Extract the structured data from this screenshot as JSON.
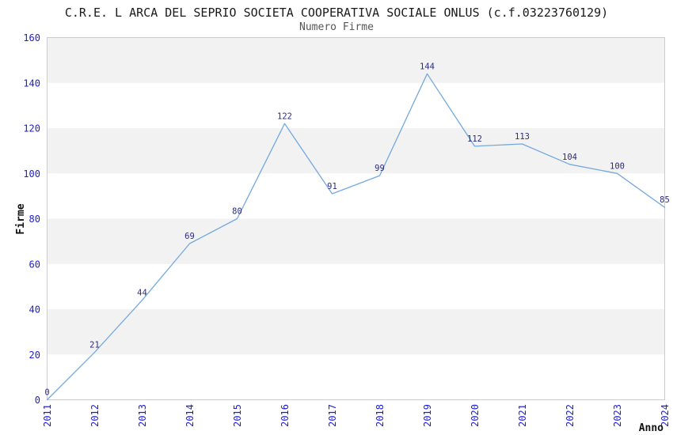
{
  "chart_data": {
    "type": "line",
    "title": "C.R.E. L ARCA DEL SEPRIO SOCIETA COOPERATIVA SOCIALE ONLUS (c.f.03223760129)",
    "subtitle": "Numero Firme",
    "xlabel": "Anno",
    "ylabel": "Firme",
    "categories": [
      "2011",
      "2012",
      "2013",
      "2014",
      "2015",
      "2016",
      "2017",
      "2018",
      "2019",
      "2020",
      "2021",
      "2022",
      "2023",
      "2024"
    ],
    "values": [
      0,
      21,
      44,
      69,
      80,
      122,
      91,
      99,
      144,
      112,
      113,
      104,
      100,
      85
    ],
    "ylim": [
      0,
      160
    ],
    "yticks": [
      0,
      20,
      40,
      60,
      80,
      100,
      120,
      140,
      160
    ],
    "grid": "alternating-horizontal-bands",
    "legend": "none",
    "colors": {
      "line": "#74a9de",
      "tick_label": "#1d1dd2",
      "data_label": "#2b2b80",
      "band": "#f2f2f2",
      "band_alt": "#ffffff",
      "border": "#cccccc",
      "title": "#1a1a1a",
      "subtitle": "#555555",
      "axis_label": "#111111"
    }
  }
}
